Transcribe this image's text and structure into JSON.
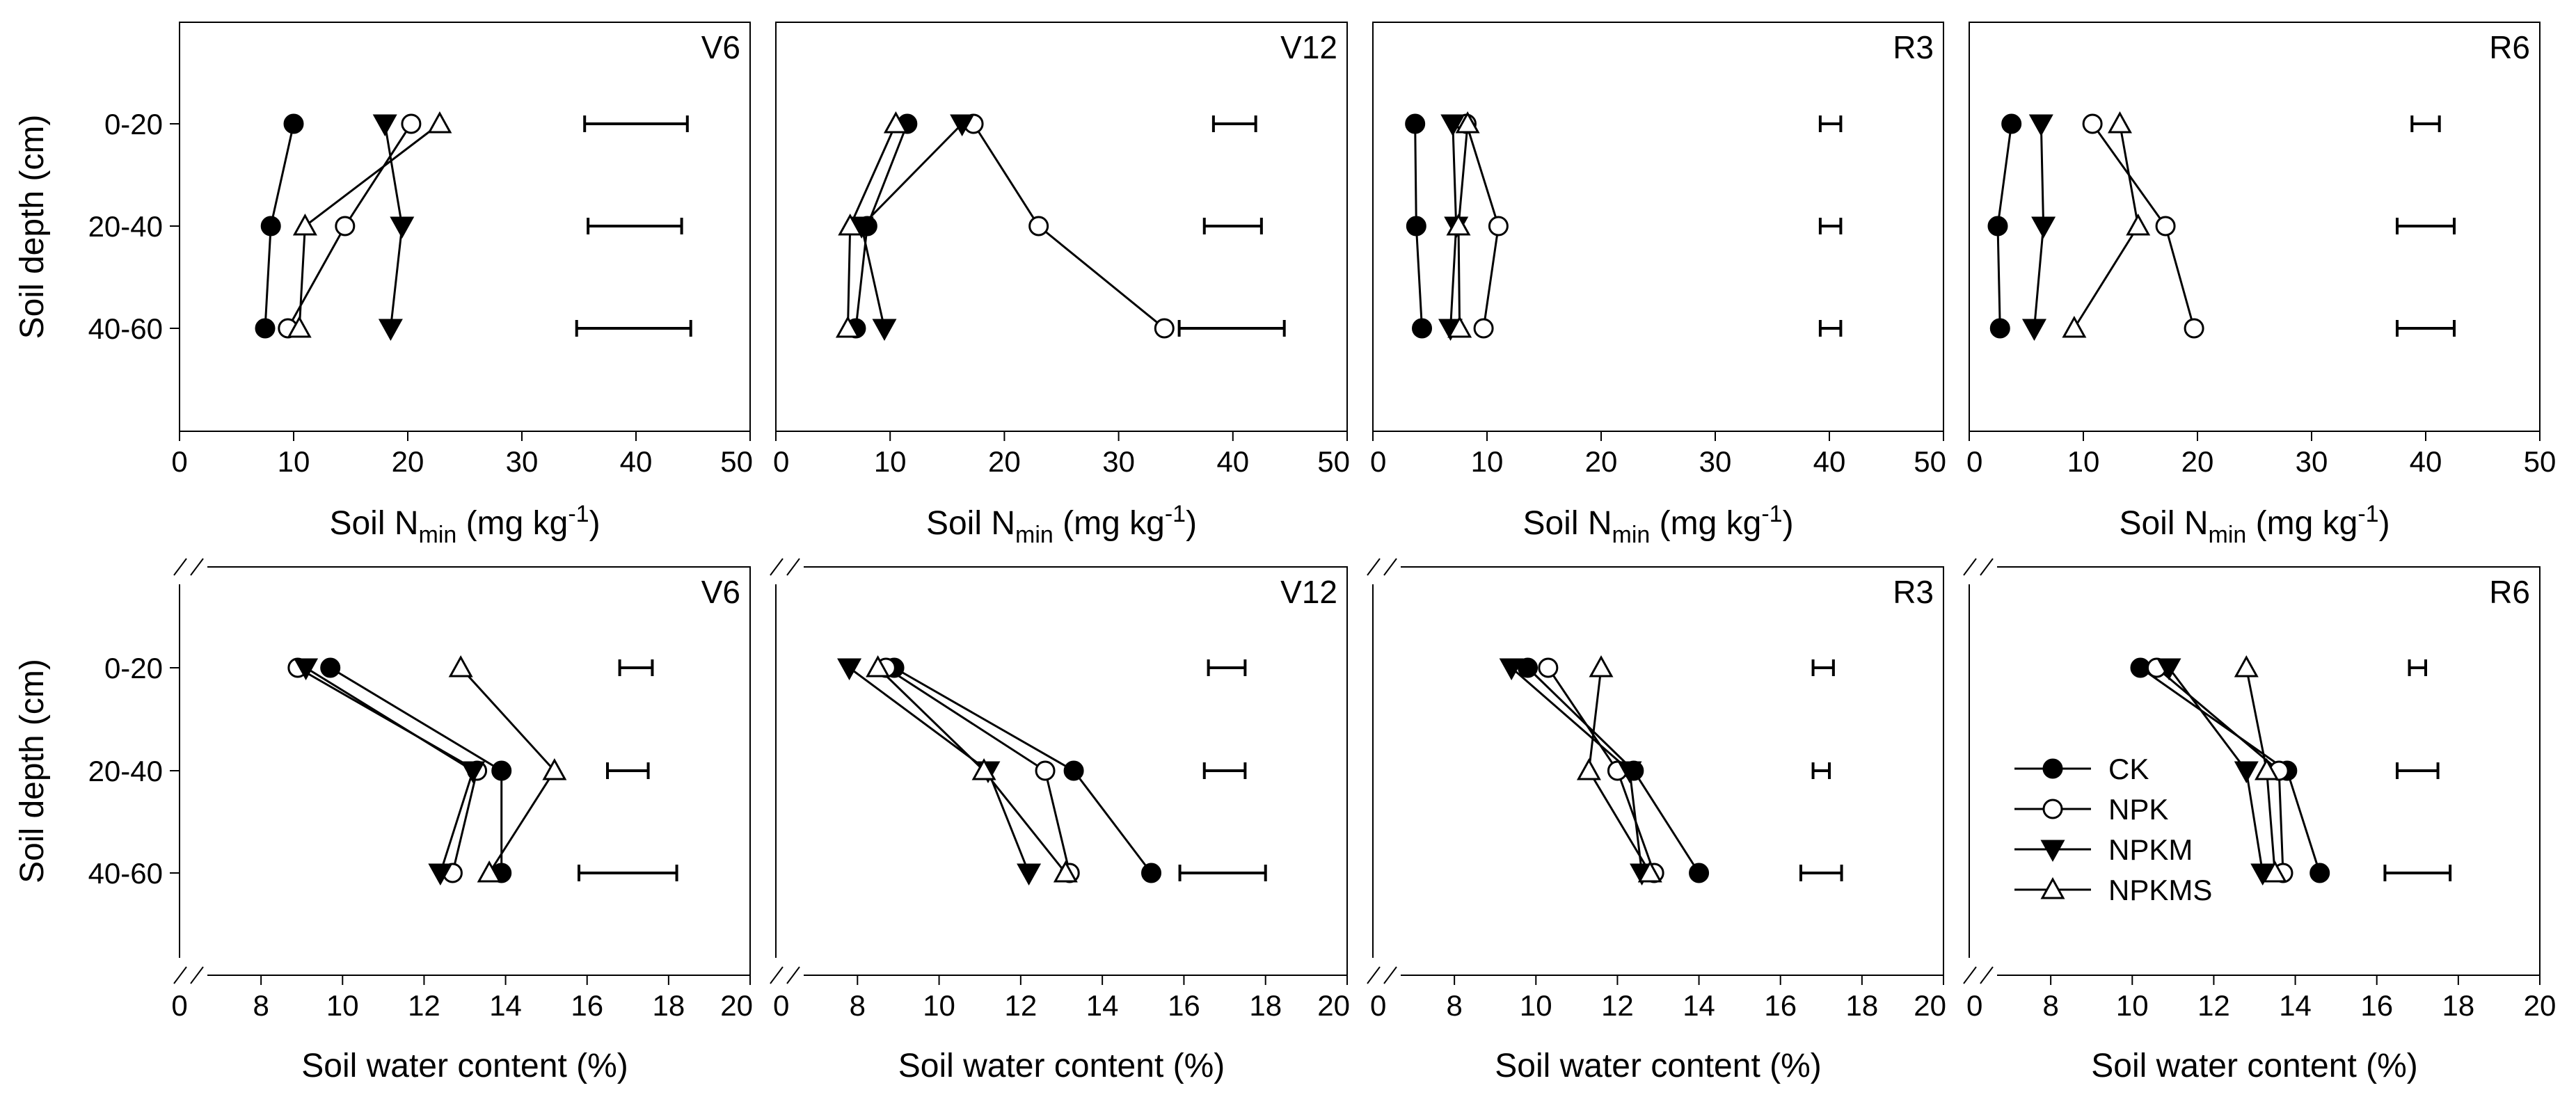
{
  "figure": {
    "rows": [
      {
        "id": "nmin",
        "xlabel": {
          "prefix": "Soil N",
          "sub": "min",
          "mid": " (mg kg",
          "sup": "-1",
          "suffix": ")"
        },
        "ylabel": "Soil depth (cm)",
        "xlim": [
          0,
          50
        ],
        "xticks": [
          0,
          10,
          20,
          30,
          40,
          50
        ],
        "axis_break": false
      },
      {
        "id": "water",
        "xlabel": {
          "prefix": "Soil water content (%)",
          "sub": "",
          "mid": "",
          "sup": "",
          "suffix": ""
        },
        "ylabel": "Soil depth (cm)",
        "xlim": [
          6,
          20
        ],
        "xticks": [
          8,
          10,
          12,
          14,
          16,
          18,
          20
        ],
        "origin_label": "0",
        "axis_break": true
      }
    ],
    "depth_labels": [
      "0-20",
      "20-40",
      "40-60"
    ],
    "legend": [
      {
        "name": "CK",
        "marker": "circle",
        "fill": "#000000"
      },
      {
        "name": "NPK",
        "marker": "circle",
        "fill": "#ffffff"
      },
      {
        "name": "NPKM",
        "marker": "triangle-down",
        "fill": "#000000"
      },
      {
        "name": "NPKMS",
        "marker": "triangle-up",
        "fill": "#ffffff"
      }
    ],
    "colors": {
      "line": "#000000",
      "background": "#ffffff"
    }
  },
  "chart_data": [
    {
      "type": "line",
      "row": 0,
      "col": 0,
      "stage": "V6",
      "title": "V6",
      "xlabel": "Soil Nmin (mg kg-1)",
      "ylabel": "Soil depth (cm)",
      "xlim": [
        0,
        50
      ],
      "depths": [
        "0-20",
        "20-40",
        "40-60"
      ],
      "series": [
        {
          "name": "CK",
          "values": [
            10,
            8,
            7.5
          ]
        },
        {
          "name": "NPK",
          "values": [
            20.3,
            14.5,
            9.5
          ]
        },
        {
          "name": "NPKM",
          "values": [
            18,
            19.5,
            18.5
          ]
        },
        {
          "name": "NPKMS",
          "values": [
            22.8,
            11,
            10.5
          ]
        }
      ],
      "error_bars": [
        {
          "depth": "0-20",
          "range": [
            35.5,
            44.5
          ]
        },
        {
          "depth": "20-40",
          "range": [
            35.8,
            44
          ]
        },
        {
          "depth": "40-60",
          "range": [
            34.8,
            44.8
          ]
        }
      ]
    },
    {
      "type": "line",
      "row": 0,
      "col": 1,
      "stage": "V12",
      "title": "V12",
      "xlabel": "Soil Nmin (mg kg-1)",
      "ylabel": "Soil depth (cm)",
      "xlim": [
        0,
        50
      ],
      "depths": [
        "0-20",
        "20-40",
        "40-60"
      ],
      "series": [
        {
          "name": "CK",
          "values": [
            11.5,
            8,
            7
          ]
        },
        {
          "name": "NPK",
          "values": [
            17.3,
            23,
            34
          ]
        },
        {
          "name": "NPKM",
          "values": [
            16.3,
            7.5,
            9.5
          ]
        },
        {
          "name": "NPKMS",
          "values": [
            10.5,
            6.5,
            6.3
          ]
        }
      ],
      "error_bars": [
        {
          "depth": "0-20",
          "range": [
            38.3,
            42
          ]
        },
        {
          "depth": "20-40",
          "range": [
            37.5,
            42.5
          ]
        },
        {
          "depth": "40-60",
          "range": [
            35.3,
            44.5
          ]
        }
      ]
    },
    {
      "type": "line",
      "row": 0,
      "col": 2,
      "stage": "R3",
      "title": "R3",
      "xlabel": "Soil Nmin (mg kg-1)",
      "ylabel": "Soil depth (cm)",
      "xlim": [
        0,
        50
      ],
      "depths": [
        "0-20",
        "20-40",
        "40-60"
      ],
      "series": [
        {
          "name": "CK",
          "values": [
            3.7,
            3.8,
            4.3
          ]
        },
        {
          "name": "NPK",
          "values": [
            8.2,
            11,
            9.7
          ]
        },
        {
          "name": "NPKM",
          "values": [
            7,
            7.3,
            6.8
          ]
        },
        {
          "name": "NPKMS",
          "values": [
            8.3,
            7.5,
            7.6
          ]
        }
      ],
      "error_bars": [
        {
          "depth": "0-20",
          "range": [
            39.2,
            41
          ]
        },
        {
          "depth": "20-40",
          "range": [
            39.2,
            41
          ]
        },
        {
          "depth": "40-60",
          "range": [
            39.2,
            41
          ]
        }
      ]
    },
    {
      "type": "line",
      "row": 0,
      "col": 3,
      "stage": "R6",
      "title": "R6",
      "xlabel": "Soil Nmin (mg kg-1)",
      "ylabel": "Soil depth (cm)",
      "xlim": [
        0,
        50
      ],
      "depths": [
        "0-20",
        "20-40",
        "40-60"
      ],
      "series": [
        {
          "name": "CK",
          "values": [
            3.7,
            2.5,
            2.7
          ]
        },
        {
          "name": "NPK",
          "values": [
            10.8,
            17.2,
            19.7
          ]
        },
        {
          "name": "NPKM",
          "values": [
            6.3,
            6.5,
            5.7
          ]
        },
        {
          "name": "NPKMS",
          "values": [
            13.2,
            14.8,
            9.2
          ]
        }
      ],
      "error_bars": [
        {
          "depth": "0-20",
          "range": [
            38.8,
            41.2
          ]
        },
        {
          "depth": "20-40",
          "range": [
            37.5,
            42.5
          ]
        },
        {
          "depth": "40-60",
          "range": [
            37.5,
            42.5
          ]
        }
      ]
    },
    {
      "type": "line",
      "row": 1,
      "col": 0,
      "stage": "V6",
      "title": "V6",
      "xlabel": "Soil water content (%)",
      "ylabel": "Soil depth (cm)",
      "xlim": [
        6,
        20
      ],
      "depths": [
        "0-20",
        "20-40",
        "40-60"
      ],
      "series": [
        {
          "name": "CK",
          "values": [
            9.7,
            13.9,
            13.9
          ]
        },
        {
          "name": "NPK",
          "values": [
            8.9,
            13.3,
            12.7
          ]
        },
        {
          "name": "NPKM",
          "values": [
            9.1,
            13.2,
            12.4
          ]
        },
        {
          "name": "NPKMS",
          "values": [
            12.9,
            15.2,
            13.6
          ]
        }
      ],
      "error_bars": [
        {
          "depth": "0-20",
          "range": [
            16.8,
            17.6
          ]
        },
        {
          "depth": "20-40",
          "range": [
            16.5,
            17.5
          ]
        },
        {
          "depth": "40-60",
          "range": [
            15.8,
            18.2
          ]
        }
      ]
    },
    {
      "type": "line",
      "row": 1,
      "col": 1,
      "stage": "V12",
      "title": "V12",
      "xlabel": "Soil water content (%)",
      "ylabel": "Soil depth (cm)",
      "xlim": [
        6,
        20
      ],
      "depths": [
        "0-20",
        "20-40",
        "40-60"
      ],
      "series": [
        {
          "name": "CK",
          "values": [
            8.9,
            13.3,
            15.2
          ]
        },
        {
          "name": "NPK",
          "values": [
            8.7,
            12.6,
            13.2
          ]
        },
        {
          "name": "NPKM",
          "values": [
            7.8,
            11.2,
            12.2
          ]
        },
        {
          "name": "NPKMS",
          "values": [
            8.5,
            11.1,
            13.1
          ]
        }
      ],
      "error_bars": [
        {
          "depth": "0-20",
          "range": [
            16.6,
            17.5
          ]
        },
        {
          "depth": "20-40",
          "range": [
            16.5,
            17.5
          ]
        },
        {
          "depth": "40-60",
          "range": [
            15.9,
            18
          ]
        }
      ]
    },
    {
      "type": "line",
      "row": 1,
      "col": 2,
      "stage": "R3",
      "title": "R3",
      "xlabel": "Soil water content (%)",
      "ylabel": "Soil depth (cm)",
      "xlim": [
        6,
        20
      ],
      "depths": [
        "0-20",
        "20-40",
        "40-60"
      ],
      "series": [
        {
          "name": "CK",
          "values": [
            9.8,
            12.4,
            14
          ]
        },
        {
          "name": "NPK",
          "values": [
            10.3,
            12,
            12.9
          ]
        },
        {
          "name": "NPKM",
          "values": [
            9.4,
            12.3,
            12.6
          ]
        },
        {
          "name": "NPKMS",
          "values": [
            11.6,
            11.3,
            12.8
          ]
        }
      ],
      "error_bars": [
        {
          "depth": "0-20",
          "range": [
            16.8,
            17.3
          ]
        },
        {
          "depth": "20-40",
          "range": [
            16.8,
            17.2
          ]
        },
        {
          "depth": "40-60",
          "range": [
            16.5,
            17.5
          ]
        }
      ]
    },
    {
      "type": "line",
      "row": 1,
      "col": 3,
      "stage": "R6",
      "title": "R6",
      "xlabel": "Soil water content (%)",
      "ylabel": "Soil depth (cm)",
      "xlim": [
        6,
        20
      ],
      "depths": [
        "0-20",
        "20-40",
        "40-60"
      ],
      "series": [
        {
          "name": "CK",
          "values": [
            10.2,
            13.8,
            14.6
          ]
        },
        {
          "name": "NPK",
          "values": [
            10.6,
            13.6,
            13.7
          ]
        },
        {
          "name": "NPKM",
          "values": [
            10.9,
            12.8,
            13.2
          ]
        },
        {
          "name": "NPKMS",
          "values": [
            12.8,
            13.3,
            13.5
          ]
        }
      ],
      "error_bars": [
        {
          "depth": "0-20",
          "range": [
            16.8,
            17.2
          ]
        },
        {
          "depth": "20-40",
          "range": [
            16.5,
            17.5
          ]
        },
        {
          "depth": "40-60",
          "range": [
            16.2,
            17.8
          ]
        }
      ]
    }
  ]
}
